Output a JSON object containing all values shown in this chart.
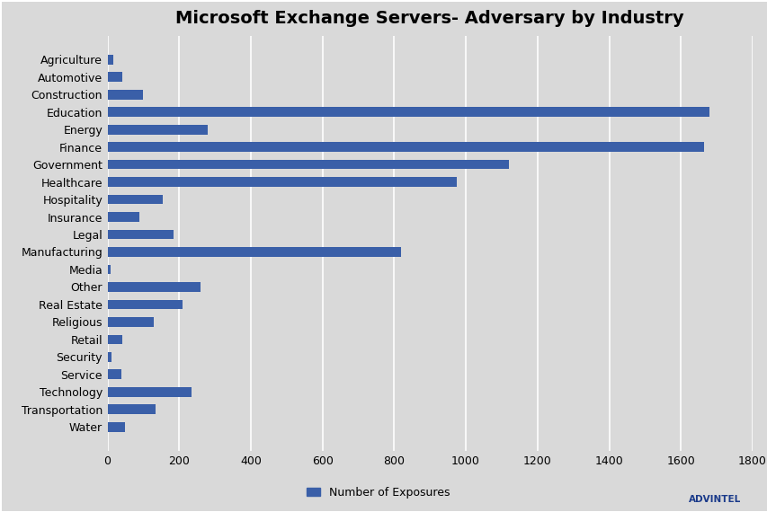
{
  "title": "Microsoft Exchange Servers- Adversary by Industry",
  "categories": [
    "Agriculture",
    "Automotive",
    "Construction",
    "Education",
    "Energy",
    "Finance",
    "Government",
    "Healthcare",
    "Hospitality",
    "Insurance",
    "Legal",
    "Manufacturing",
    "Media",
    "Other",
    "Real Estate",
    "Religious",
    "Retail",
    "Security",
    "Service",
    "Technology",
    "Transportation",
    "Water"
  ],
  "values": [
    15,
    40,
    100,
    1680,
    280,
    1665,
    1120,
    975,
    155,
    90,
    185,
    820,
    8,
    260,
    210,
    130,
    42,
    10,
    38,
    235,
    135,
    48
  ],
  "bar_color": "#3A5FA8",
  "background_color": "#D9D9D9",
  "plot_bg_color": "#D9D9D9",
  "title_fontsize": 14,
  "tick_fontsize": 9,
  "legend_label": "Number of Exposures",
  "xlim": [
    0,
    1800
  ],
  "xticks": [
    0,
    200,
    400,
    600,
    800,
    1000,
    1200,
    1400,
    1600,
    1800
  ],
  "grid_color": "#FFFFFF",
  "advintel_logo_color": "#1a3a8a",
  "bar_height": 0.55
}
